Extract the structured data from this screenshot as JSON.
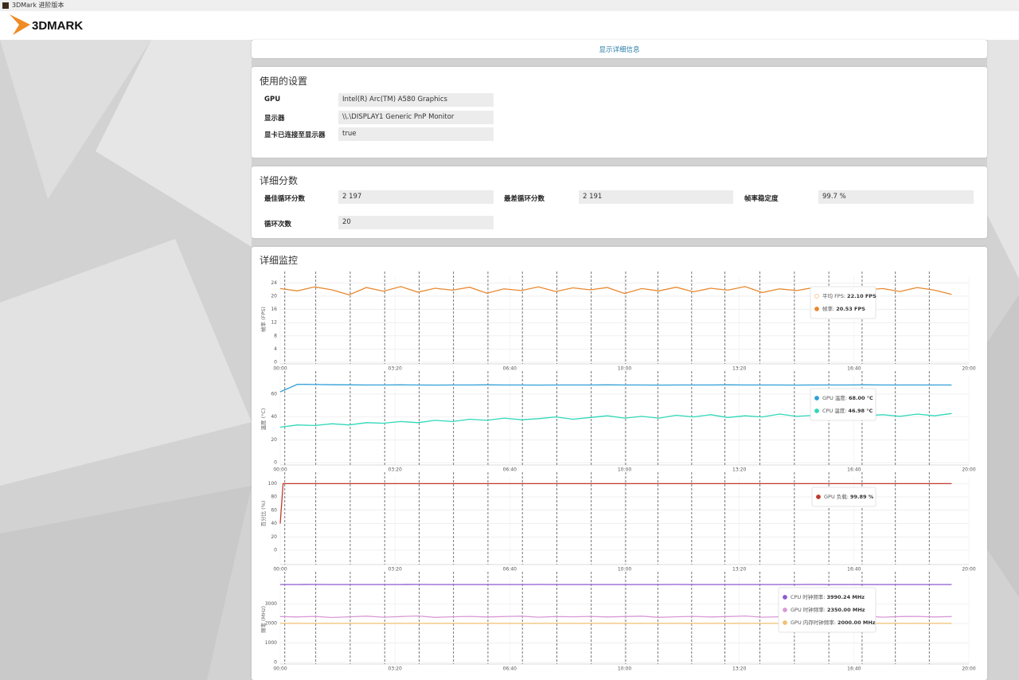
{
  "window_title": "3DMark 进阶版本",
  "logo": "3DMARK",
  "details_link": "显示详细信息",
  "settings": {
    "title": "使用的设置",
    "rows": [
      [
        "GPU",
        "Intel(R) Arc(TM) A580 Graphics"
      ],
      [
        "显示器",
        "\\\\.\\DISPLAY1 Generic PnP Monitor"
      ],
      [
        "显卡已连接至显示器",
        "true"
      ]
    ]
  },
  "scores": {
    "title": "详细分数",
    "rows": [
      [
        "最佳循环分数",
        "2 197"
      ],
      [
        "最差循环分数",
        "2 191"
      ],
      [
        "帧率稳定度",
        "99.7 %"
      ],
      [
        "循环次数",
        "20"
      ]
    ]
  },
  "monitoring_title": "详细监控",
  "chart_data": [
    {
      "type": "line",
      "ylabel": "帧率 (FPS)",
      "ylim": [
        0,
        26
      ],
      "yticks": [
        0,
        4,
        8,
        12,
        16,
        20,
        24
      ],
      "grid": true,
      "xlim": [
        0,
        1200
      ],
      "xticks": [
        {
          "value": 0,
          "label": "00:00"
        },
        {
          "value": 200,
          "label": "03:20"
        },
        {
          "value": 400,
          "label": "06:40"
        },
        {
          "value": 600,
          "label": "10:00"
        },
        {
          "value": 800,
          "label": "13:20"
        },
        {
          "value": 1000,
          "label": "16:40"
        },
        {
          "value": 1200,
          "label": "20:00"
        }
      ],
      "loop_markers": [
        8,
        62,
        122,
        182,
        242,
        302,
        362,
        422,
        482,
        542,
        602,
        658,
        717,
        775,
        836,
        896,
        956,
        1014,
        1072,
        1131
      ],
      "x": [
        0,
        30,
        60,
        90,
        120,
        150,
        180,
        210,
        240,
        270,
        300,
        330,
        360,
        390,
        420,
        450,
        480,
        510,
        540,
        570,
        600,
        630,
        660,
        690,
        720,
        750,
        780,
        810,
        840,
        870,
        900,
        930,
        960,
        990,
        1020,
        1050,
        1080,
        1110,
        1140,
        1170
      ],
      "legend_off": [
        {
          "name": "平均 FPS:",
          "color": "#f2c27b",
          "value_label": "22.10 FPS"
        }
      ],
      "series": [
        {
          "name": "帧率:",
          "color": "#e8892f",
          "value_label": "20.53 FPS",
          "values": [
            22.3,
            21.6,
            22.8,
            21.9,
            20.4,
            22.6,
            21.5,
            22.9,
            21.2,
            22.4,
            21.8,
            22.7,
            20.9,
            22.2,
            21.7,
            22.8,
            21.4,
            22.5,
            21.9,
            22.6,
            20.8,
            22.3,
            21.6,
            22.7,
            21.3,
            22.4,
            21.8,
            22.9,
            21.1,
            22.2,
            21.7,
            22.6,
            21.0,
            22.5,
            21.9,
            22.3,
            21.4,
            22.6,
            21.8,
            20.5
          ]
        }
      ]
    },
    {
      "type": "line",
      "ylabel": "温度 (°C)",
      "ylim": [
        0,
        76
      ],
      "yticks": [
        0,
        20,
        40,
        60
      ],
      "grid": true,
      "xlim": [
        0,
        1200
      ],
      "xticks": [
        {
          "value": 0,
          "label": "00:00"
        },
        {
          "value": 200,
          "label": "03:20"
        },
        {
          "value": 400,
          "label": "06:40"
        },
        {
          "value": 600,
          "label": "10:00"
        },
        {
          "value": 800,
          "label": "13:20"
        },
        {
          "value": 1000,
          "label": "16:40"
        },
        {
          "value": 1200,
          "label": "20:00"
        }
      ],
      "loop_markers": [
        8,
        62,
        122,
        182,
        242,
        302,
        362,
        422,
        482,
        542,
        602,
        658,
        717,
        775,
        836,
        896,
        956,
        1014,
        1072,
        1131
      ],
      "x": [
        0,
        30,
        60,
        90,
        120,
        150,
        180,
        210,
        240,
        270,
        300,
        330,
        360,
        390,
        420,
        450,
        480,
        510,
        540,
        570,
        600,
        630,
        660,
        690,
        720,
        750,
        780,
        810,
        840,
        870,
        900,
        930,
        960,
        990,
        1020,
        1050,
        1080,
        1110,
        1140,
        1170
      ],
      "series": [
        {
          "name": "GPU 温度:",
          "color": "#2f9fd8",
          "value_label": "68.00 °C",
          "values": [
            62,
            68.6,
            68.4,
            68.2,
            68.1,
            68,
            68,
            68.1,
            68,
            67.9,
            68,
            68,
            68.1,
            68,
            68,
            67.9,
            68,
            68,
            68,
            68.1,
            68,
            68,
            67.9,
            68,
            68,
            68,
            68.1,
            68,
            68,
            68,
            67.9,
            68,
            68,
            68,
            68.1,
            68,
            68,
            68,
            68,
            68
          ]
        },
        {
          "name": "CPU 温度:",
          "color": "#2fd8b8",
          "value_label": "46.98 °C",
          "values": [
            31,
            33,
            32.5,
            34,
            33,
            35,
            34.5,
            36,
            35,
            37,
            36,
            38,
            37,
            39,
            37.5,
            38.5,
            40,
            38,
            39.5,
            41,
            39,
            40.5,
            39,
            41.5,
            40,
            42,
            39.5,
            41,
            40,
            42.5,
            40.5,
            41.5,
            40,
            43,
            41,
            42,
            40.5,
            42.5,
            41,
            43
          ]
        }
      ]
    },
    {
      "type": "line",
      "ylabel": "百分比 (%)",
      "ylim": [
        0,
        110
      ],
      "yticks": [
        0,
        20,
        40,
        60,
        80,
        100
      ],
      "grid": true,
      "xlim": [
        0,
        1200
      ],
      "xticks": [
        {
          "value": 0,
          "label": "00:00"
        },
        {
          "value": 200,
          "label": "03:20"
        },
        {
          "value": 400,
          "label": "06:40"
        },
        {
          "value": 600,
          "label": "10:00"
        },
        {
          "value": 800,
          "label": "13:20"
        },
        {
          "value": 1000,
          "label": "16:40"
        },
        {
          "value": 1200,
          "label": "20:00"
        }
      ],
      "loop_markers": [
        8,
        62,
        122,
        182,
        242,
        302,
        362,
        422,
        482,
        542,
        602,
        658,
        717,
        775,
        836,
        896,
        956,
        1014,
        1072,
        1131
      ],
      "x": [
        0,
        5,
        30,
        60,
        90,
        120,
        150,
        180,
        210,
        240,
        270,
        300,
        330,
        360,
        390,
        420,
        450,
        480,
        510,
        540,
        570,
        600,
        630,
        660,
        690,
        720,
        750,
        780,
        810,
        840,
        870,
        900,
        930,
        960,
        990,
        1020,
        1050,
        1080,
        1110,
        1140,
        1170
      ],
      "series": [
        {
          "name": "GPU 负载:",
          "color": "#c0392b",
          "value_label": "99.89 %",
          "values": [
            40,
            100,
            99.9,
            100,
            99.9,
            100,
            99.9,
            100,
            99.9,
            100,
            99.9,
            100,
            99.9,
            100,
            99.9,
            100,
            99.9,
            100,
            99.9,
            100,
            99.9,
            100,
            99.9,
            100,
            99.9,
            100,
            99.9,
            100,
            99.9,
            100,
            99.9,
            100,
            99.9,
            100,
            99.9,
            100,
            99.9,
            100,
            99.9,
            100,
            99.9
          ]
        }
      ]
    },
    {
      "type": "line",
      "ylabel": "频率 (MHz)",
      "ylim": [
        0,
        4400
      ],
      "yticks": [
        0,
        1000,
        2000,
        3000
      ],
      "grid": true,
      "xlim": [
        0,
        1200
      ],
      "xticks": [
        {
          "value": 0,
          "label": "00:00"
        },
        {
          "value": 200,
          "label": "03:20"
        },
        {
          "value": 400,
          "label": "06:40"
        },
        {
          "value": 600,
          "label": "10:00"
        },
        {
          "value": 800,
          "label": "13:20"
        },
        {
          "value": 1000,
          "label": "16:40"
        },
        {
          "value": 1200,
          "label": "20:00"
        }
      ],
      "loop_markers": [
        8,
        62,
        122,
        182,
        242,
        302,
        362,
        422,
        482,
        542,
        602,
        658,
        717,
        775,
        836,
        896,
        956,
        1014,
        1072,
        1131
      ],
      "x": [
        0,
        30,
        60,
        90,
        120,
        150,
        180,
        210,
        240,
        270,
        300,
        330,
        360,
        390,
        420,
        450,
        480,
        510,
        540,
        570,
        600,
        630,
        660,
        690,
        720,
        750,
        780,
        810,
        840,
        870,
        900,
        930,
        960,
        990,
        1020,
        1050,
        1080,
        1110,
        1140,
        1170
      ],
      "series": [
        {
          "name": "CPU 时钟频率:",
          "color": "#8e5bd1",
          "value_label": "3990.24 MHz",
          "values": [
            3990,
            3990,
            3991,
            3990,
            3990,
            3989,
            3990,
            3990,
            3991,
            3990,
            3990,
            3990,
            3989,
            3990,
            3990,
            3991,
            3990,
            3990,
            3990,
            3990,
            3989,
            3990,
            3990,
            3991,
            3990,
            3990,
            3990,
            3990,
            3989,
            3990,
            3990,
            3991,
            3990,
            3990,
            3990,
            3990,
            3989,
            3990,
            3990,
            3990
          ]
        },
        {
          "name": "GPU 时钟频率:",
          "color": "#d99ad6",
          "value_label": "2350.00 MHz",
          "values": [
            2350,
            2330,
            2360,
            2300,
            2340,
            2370,
            2320,
            2350,
            2380,
            2310,
            2340,
            2360,
            2330,
            2350,
            2370,
            2320,
            2350,
            2340,
            2360,
            2330,
            2350,
            2370,
            2310,
            2340,
            2360,
            2330,
            2350,
            2380,
            2320,
            2340,
            2360,
            2330,
            2350,
            2340,
            2370,
            2320,
            2350,
            2360,
            2330,
            2350
          ]
        },
        {
          "name": "GPU 内存时钟频率:",
          "color": "#f0c070",
          "value_label": "2000.00 MHz",
          "values": [
            2000,
            2000,
            2000,
            2000,
            2000,
            2000,
            2000,
            2000,
            2000,
            2000,
            2000,
            2000,
            2000,
            2000,
            2000,
            2000,
            2000,
            2000,
            2000,
            2000,
            2000,
            2000,
            2000,
            2000,
            2000,
            2000,
            2000,
            2000,
            2000,
            2000,
            2000,
            2000,
            2000,
            2000,
            2000,
            2000,
            2000,
            2000,
            2000,
            2000
          ]
        }
      ]
    }
  ]
}
